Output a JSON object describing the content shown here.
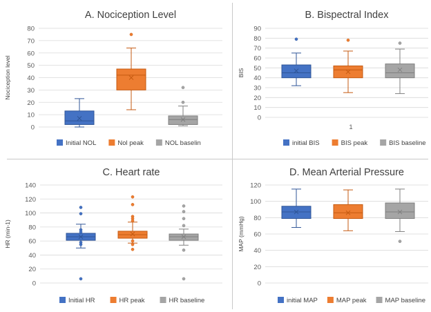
{
  "chart_data": [
    {
      "type": "box",
      "title": "A. Nociception Level",
      "ylabel": "Nociception level",
      "ylim": [
        0,
        80
      ],
      "yticks": [
        0,
        10,
        20,
        30,
        40,
        50,
        60,
        70,
        80
      ],
      "xticklabel": "",
      "legend_position": "bottom",
      "series": [
        {
          "name": "Initial NOL",
          "color": "#4472C4",
          "stroke": "#2F5597",
          "whisker_low": 0,
          "q1": 2,
          "median": 5,
          "mean": 7,
          "q3": 13,
          "whisker_high": 23,
          "outliers": []
        },
        {
          "name": "Nol peak",
          "color": "#ED7D31",
          "stroke": "#C55A11",
          "whisker_low": 14,
          "q1": 30,
          "median": 42,
          "mean": 40,
          "q3": 47,
          "whisker_high": 64,
          "outliers": [
            75
          ]
        },
        {
          "name": "NOL baselin",
          "color": "#A5A5A5",
          "stroke": "#7F7F7F",
          "whisker_low": 1,
          "q1": 2,
          "median": 6,
          "mean": 6,
          "q3": 9,
          "whisker_high": 17,
          "outliers": [
            20,
            32
          ]
        }
      ]
    },
    {
      "type": "box",
      "title": "B. Bispectral Index",
      "ylabel": "BIS",
      "ylim": [
        0,
        90
      ],
      "yticks": [
        0,
        10,
        20,
        30,
        40,
        50,
        60,
        70,
        80,
        90
      ],
      "xticklabel": "1",
      "legend_position": "bottom",
      "series": [
        {
          "name": "initial BIS",
          "color": "#4472C4",
          "stroke": "#2F5597",
          "whisker_low": 32,
          "q1": 40,
          "median": 45,
          "mean": 47,
          "q3": 53,
          "whisker_high": 65,
          "outliers": [
            79
          ]
        },
        {
          "name": "BIS peak",
          "color": "#ED7D31",
          "stroke": "#C55A11",
          "whisker_low": 25,
          "q1": 40,
          "median": 48,
          "mean": 46,
          "q3": 52,
          "whisker_high": 67,
          "outliers": [
            78
          ]
        },
        {
          "name": "BIS baseline",
          "color": "#A5A5A5",
          "stroke": "#7F7F7F",
          "whisker_low": 24,
          "q1": 40,
          "median": 45,
          "mean": 48,
          "q3": 54,
          "whisker_high": 69,
          "outliers": [
            75
          ]
        }
      ]
    },
    {
      "type": "box",
      "title": "C. Heart rate",
      "ylabel": "HR (min-1)",
      "ylim": [
        0,
        140
      ],
      "yticks": [
        0,
        20,
        40,
        60,
        80,
        100,
        120,
        140
      ],
      "xticklabel": "",
      "legend_position": "bottom",
      "series": [
        {
          "name": "Initial HR",
          "color": "#4472C4",
          "stroke": "#2F5597",
          "whisker_low": 50,
          "q1": 61,
          "median": 66,
          "mean": 66,
          "q3": 71,
          "whisker_high": 84,
          "outliers": [
            108,
            99,
            76,
            73,
            58,
            55,
            6
          ]
        },
        {
          "name": "HR peak",
          "color": "#ED7D31",
          "stroke": "#C55A11",
          "whisker_low": 57,
          "q1": 64,
          "median": 69,
          "mean": 70,
          "q3": 74,
          "whisker_high": 87,
          "outliers": [
            123,
            112,
            95,
            92,
            89,
            60,
            55,
            48
          ]
        },
        {
          "name": "HR baseline",
          "color": "#A5A5A5",
          "stroke": "#7F7F7F",
          "whisker_low": 54,
          "q1": 61,
          "median": 66,
          "mean": 66,
          "q3": 70,
          "whisker_high": 77,
          "outliers": [
            110,
            102,
            92,
            82,
            47,
            6
          ]
        }
      ]
    },
    {
      "type": "box",
      "title": "D. Mean Arterial Pressure",
      "ylabel": "MAP (mmHg)",
      "ylim": [
        0,
        120
      ],
      "yticks": [
        0,
        20,
        40,
        60,
        80,
        100,
        120
      ],
      "xticklabel": "",
      "legend_position": "bottom",
      "series": [
        {
          "name": "initial MAP",
          "color": "#4472C4",
          "stroke": "#2F5597",
          "whisker_low": 68,
          "q1": 79,
          "median": 87,
          "mean": 87,
          "q3": 94,
          "whisker_high": 115,
          "outliers": []
        },
        {
          "name": "MAP peak",
          "color": "#ED7D31",
          "stroke": "#C55A11",
          "whisker_low": 64,
          "q1": 79,
          "median": 86,
          "mean": 86,
          "q3": 96,
          "whisker_high": 114,
          "outliers": []
        },
        {
          "name": "MAP baseline",
          "color": "#A5A5A5",
          "stroke": "#7F7F7F",
          "whisker_low": 63,
          "q1": 79,
          "median": 87,
          "mean": 87,
          "q3": 98,
          "whisker_high": 115,
          "outliers": [
            51
          ]
        }
      ]
    }
  ]
}
